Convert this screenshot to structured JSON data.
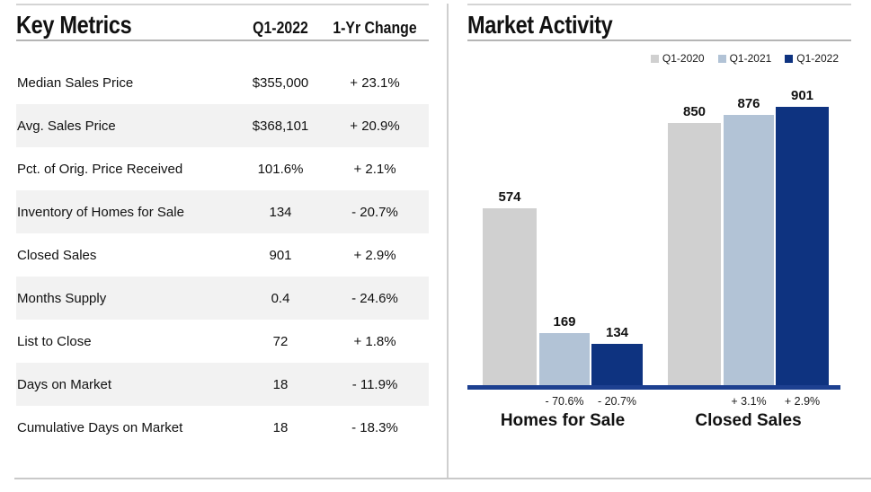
{
  "page": {
    "background": "#ffffff"
  },
  "key_metrics": {
    "title": "Key Metrics",
    "columns": {
      "period": "Q1-2022",
      "change": "1-Yr Change"
    },
    "row_alt_color": "#f2f2f2",
    "rows": [
      {
        "label": "Median Sales Price",
        "value": "$355,000",
        "change": "+ 23.1%"
      },
      {
        "label": "Avg. Sales Price",
        "value": "$368,101",
        "change": "+ 20.9%"
      },
      {
        "label": "Pct. of Orig. Price Received",
        "value": "101.6%",
        "change": "+ 2.1%"
      },
      {
        "label": "Inventory of Homes for Sale",
        "value": "134",
        "change": "- 20.7%"
      },
      {
        "label": "Closed Sales",
        "value": "901",
        "change": "+ 2.9%"
      },
      {
        "label": "Months Supply",
        "value": "0.4",
        "change": "- 24.6%"
      },
      {
        "label": "List to Close",
        "value": "72",
        "change": "+ 1.8%"
      },
      {
        "label": "Days on Market",
        "value": "18",
        "change": "- 11.9%"
      },
      {
        "label": "Cumulative Days on Market",
        "value": "18",
        "change": "- 18.3%"
      }
    ]
  },
  "market_activity": {
    "title": "Market Activity",
    "legend": [
      {
        "label": "Q1-2020",
        "color": "#d0d0d0"
      },
      {
        "label": "Q1-2021",
        "color": "#b2c3d6"
      },
      {
        "label": "Q1-2022",
        "color": "#0e3380"
      }
    ],
    "colors": {
      "Q1-2020": "#d0d0d0",
      "Q1-2021": "#b2c3d6",
      "Q1-2022": "#0e3380"
    },
    "axis_color": "#1d4090",
    "groups": [
      {
        "label": "Homes for Sale",
        "bars": [
          {
            "series": "Q1-2020",
            "value": 574,
            "pct": ""
          },
          {
            "series": "Q1-2021",
            "value": 169,
            "pct": "- 70.6%"
          },
          {
            "series": "Q1-2022",
            "value": 134,
            "pct": "- 20.7%"
          }
        ]
      },
      {
        "label": "Closed Sales",
        "bars": [
          {
            "series": "Q1-2020",
            "value": 850,
            "pct": ""
          },
          {
            "series": "Q1-2021",
            "value": 876,
            "pct": "+ 3.1%"
          },
          {
            "series": "Q1-2022",
            "value": 901,
            "pct": "+ 2.9%"
          }
        ]
      }
    ]
  },
  "chart_data": {
    "type": "bar",
    "title": "Market Activity",
    "categories": [
      "Homes for Sale",
      "Closed Sales"
    ],
    "series": [
      {
        "name": "Q1-2020",
        "values": [
          574,
          850
        ]
      },
      {
        "name": "Q1-2021",
        "values": [
          169,
          876
        ]
      },
      {
        "name": "Q1-2022",
        "values": [
          134,
          901
        ]
      }
    ],
    "pct_change_labels": [
      {
        "series": "Q1-2021",
        "values": [
          "- 70.6%",
          "+ 3.1%"
        ]
      },
      {
        "series": "Q1-2022",
        "values": [
          "- 20.7%",
          "+ 2.9%"
        ]
      }
    ],
    "value_labels": true,
    "ylim": [
      0,
      950
    ],
    "grid": false,
    "legend_position": "top-right",
    "xlabel": "",
    "ylabel": ""
  }
}
